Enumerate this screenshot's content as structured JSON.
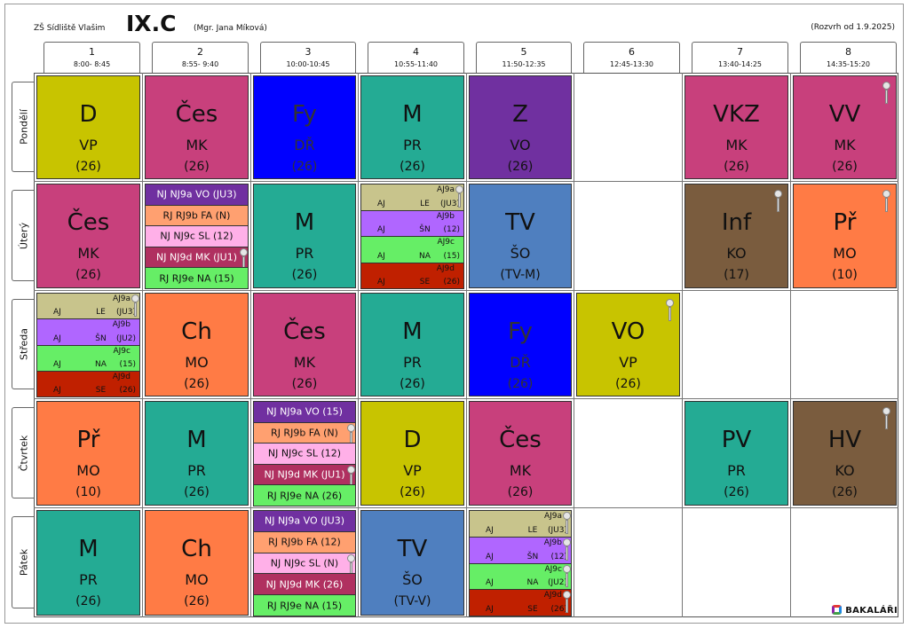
{
  "header": {
    "school": "ZŠ Sídliště Vlašim",
    "class_name": "IX.C",
    "teacher": "(Mgr. Jana Míková)",
    "valid_from": "(Rozvrh od 1.9.2025)"
  },
  "periods": [
    {
      "n": "1",
      "t": "8:00- 8:45"
    },
    {
      "n": "2",
      "t": "8:55- 9:40"
    },
    {
      "n": "3",
      "t": "10:00-10:45"
    },
    {
      "n": "4",
      "t": "10:55-11:40"
    },
    {
      "n": "5",
      "t": "11:50-12:35"
    },
    {
      "n": "6",
      "t": "12:45-13:30"
    },
    {
      "n": "7",
      "t": "13:40-14:25"
    },
    {
      "n": "8",
      "t": "14:35-15:20"
    }
  ],
  "days": [
    "Pondělí",
    "Úterý",
    "Středa",
    "Čtvrtek",
    "Pátek"
  ],
  "colors": {
    "yellow": "#c8c400",
    "pink": "#c8407c",
    "blue": "#0000ff",
    "teal": "#24ab94",
    "purple": "#7030a0",
    "steel": "#4f7fbf",
    "brown": "#7a5c3e",
    "orange": "#ff7b45"
  },
  "lessons": [
    {
      "d": 0,
      "p": 0,
      "subj": "D",
      "tch": "VP",
      "room": "(26)",
      "color": "#c8c400"
    },
    {
      "d": 0,
      "p": 1,
      "subj": "Čes",
      "tch": "MK",
      "room": "(26)",
      "color": "#c8407c"
    },
    {
      "d": 0,
      "p": 2,
      "subj": "Fy",
      "tch": "DŘ",
      "room": "(26)",
      "color": "#0000ff"
    },
    {
      "d": 0,
      "p": 3,
      "subj": "M",
      "tch": "PR",
      "room": "(26)",
      "color": "#24ab94"
    },
    {
      "d": 0,
      "p": 4,
      "subj": "Z",
      "tch": "VO",
      "room": "(26)",
      "color": "#7030a0"
    },
    {
      "d": 0,
      "p": 6,
      "subj": "VKZ",
      "tch": "MK",
      "room": "(26)",
      "color": "#c8407c"
    },
    {
      "d": 0,
      "p": 7,
      "subj": "VV",
      "tch": "MK",
      "room": "(26)",
      "color": "#c8407c",
      "key": true
    },
    {
      "d": 1,
      "p": 0,
      "subj": "Čes",
      "tch": "MK",
      "room": "(26)",
      "color": "#c8407c"
    },
    {
      "d": 1,
      "p": 2,
      "subj": "M",
      "tch": "PR",
      "room": "(26)",
      "color": "#24ab94"
    },
    {
      "d": 1,
      "p": 4,
      "subj": "TV",
      "tch": "ŠO",
      "room": "(TV-M)",
      "color": "#4f7fbf"
    },
    {
      "d": 1,
      "p": 6,
      "subj": "Inf",
      "tch": "KO",
      "room": "(17)",
      "color": "#7a5c3e",
      "key": true
    },
    {
      "d": 1,
      "p": 7,
      "subj": "Př",
      "tch": "MO",
      "room": "(10)",
      "color": "#ff7b45",
      "key": true
    },
    {
      "d": 2,
      "p": 1,
      "subj": "Ch",
      "tch": "MO",
      "room": "(26)",
      "color": "#ff7b45"
    },
    {
      "d": 2,
      "p": 2,
      "subj": "Čes",
      "tch": "MK",
      "room": "(26)",
      "color": "#c8407c"
    },
    {
      "d": 2,
      "p": 3,
      "subj": "M",
      "tch": "PR",
      "room": "(26)",
      "color": "#24ab94"
    },
    {
      "d": 2,
      "p": 4,
      "subj": "Fy",
      "tch": "DŘ",
      "room": "(26)",
      "color": "#0000ff"
    },
    {
      "d": 2,
      "p": 5,
      "subj": "VO",
      "tch": "VP",
      "room": "(26)",
      "color": "#c8c400",
      "key": true
    },
    {
      "d": 3,
      "p": 0,
      "subj": "Př",
      "tch": "MO",
      "room": "(10)",
      "color": "#ff7b45"
    },
    {
      "d": 3,
      "p": 1,
      "subj": "M",
      "tch": "PR",
      "room": "(26)",
      "color": "#24ab94"
    },
    {
      "d": 3,
      "p": 3,
      "subj": "D",
      "tch": "VP",
      "room": "(26)",
      "color": "#c8c400"
    },
    {
      "d": 3,
      "p": 4,
      "subj": "Čes",
      "tch": "MK",
      "room": "(26)",
      "color": "#c8407c"
    },
    {
      "d": 3,
      "p": 6,
      "subj": "PV",
      "tch": "PR",
      "room": "(26)",
      "color": "#24ab94"
    },
    {
      "d": 3,
      "p": 7,
      "subj": "HV",
      "tch": "KO",
      "room": "(26)",
      "color": "#7a5c3e",
      "key": true
    },
    {
      "d": 4,
      "p": 0,
      "subj": "M",
      "tch": "PR",
      "room": "(26)",
      "color": "#24ab94"
    },
    {
      "d": 4,
      "p": 1,
      "subj": "Ch",
      "tch": "MO",
      "room": "(26)",
      "color": "#ff7b45"
    },
    {
      "d": 4,
      "p": 3,
      "subj": "TV",
      "tch": "ŠO",
      "room": "(TV-V)",
      "color": "#4f7fbf"
    }
  ],
  "split_rows": [
    {
      "d": 1,
      "p": 1,
      "rows": [
        {
          "text": "NJ NJ9a VO (JU3)",
          "color": "#7030a0",
          "fg": "#fff"
        },
        {
          "text": "RJ RJ9b FA (N)",
          "color": "#ffa070",
          "fg": "#111"
        },
        {
          "text": "NJ NJ9c SL (12)",
          "color": "#ffb0e8",
          "fg": "#111"
        },
        {
          "text": "NJ NJ9d MK (JU1)",
          "color": "#b03060",
          "fg": "#fff",
          "key": true
        },
        {
          "text": "RJ RJ9e NA (15)",
          "color": "#66ee66",
          "fg": "#111"
        }
      ]
    },
    {
      "d": 3,
      "p": 2,
      "rows": [
        {
          "text": "NJ NJ9a VO (15)",
          "color": "#7030a0",
          "fg": "#fff"
        },
        {
          "text": "RJ RJ9b FA (N)",
          "color": "#ffa070",
          "fg": "#111",
          "key": true
        },
        {
          "text": "NJ NJ9c SL (12)",
          "color": "#ffb0e8",
          "fg": "#111"
        },
        {
          "text": "NJ NJ9d MK (JU1)",
          "color": "#b03060",
          "fg": "#fff",
          "key": true
        },
        {
          "text": "RJ RJ9e NA (26)",
          "color": "#66ee66",
          "fg": "#111"
        }
      ]
    },
    {
      "d": 4,
      "p": 2,
      "rows": [
        {
          "text": "NJ NJ9a VO (JU3)",
          "color": "#7030a0",
          "fg": "#fff"
        },
        {
          "text": "RJ RJ9b FA (12)",
          "color": "#ffa070",
          "fg": "#111"
        },
        {
          "text": "NJ NJ9c SL (N)",
          "color": "#ffb0e8",
          "fg": "#111",
          "key": true
        },
        {
          "text": "NJ NJ9d MK (26)",
          "color": "#b03060",
          "fg": "#fff"
        },
        {
          "text": "RJ RJ9e NA (15)",
          "color": "#66ee66",
          "fg": "#111"
        }
      ]
    }
  ],
  "split_groups": [
    {
      "d": 1,
      "p": 3,
      "rows": [
        {
          "g": "AJ9a",
          "a": "AJ",
          "b": "LE",
          "c": "(JU3)",
          "color": "#c8c48c",
          "key": true
        },
        {
          "g": "AJ9b",
          "a": "AJ",
          "b": "ŠN",
          "c": "(12)",
          "color": "#b066ff"
        },
        {
          "g": "AJ9c",
          "a": "AJ",
          "b": "NA",
          "c": "(15)",
          "color": "#66ee66"
        },
        {
          "g": "AJ9d",
          "a": "AJ",
          "b": "SE",
          "c": "(26)",
          "color": "#c02000"
        }
      ]
    },
    {
      "d": 2,
      "p": 0,
      "rows": [
        {
          "g": "AJ9a",
          "a": "AJ",
          "b": "LE",
          "c": "(JU3)",
          "color": "#c8c48c",
          "key": true
        },
        {
          "g": "AJ9b",
          "a": "AJ",
          "b": "ŠN",
          "c": "(JU2)",
          "color": "#b066ff"
        },
        {
          "g": "AJ9c",
          "a": "AJ",
          "b": "NA",
          "c": "(15)",
          "color": "#66ee66"
        },
        {
          "g": "AJ9d",
          "a": "AJ",
          "b": "SE",
          "c": "(26)",
          "color": "#c02000"
        }
      ]
    },
    {
      "d": 4,
      "p": 4,
      "rows": [
        {
          "g": "AJ9a",
          "a": "AJ",
          "b": "LE",
          "c": "(JU3)",
          "color": "#c8c48c",
          "key": true
        },
        {
          "g": "AJ9b",
          "a": "AJ",
          "b": "ŠN",
          "c": "(12)",
          "color": "#b066ff",
          "key": true
        },
        {
          "g": "AJ9c",
          "a": "AJ",
          "b": "NA",
          "c": "(JU2)",
          "color": "#66ee66",
          "key": true
        },
        {
          "g": "AJ9d",
          "a": "AJ",
          "b": "SE",
          "c": "(26)",
          "color": "#c02000",
          "key": true
        }
      ]
    }
  ],
  "brand": "BAKALÁŘI"
}
